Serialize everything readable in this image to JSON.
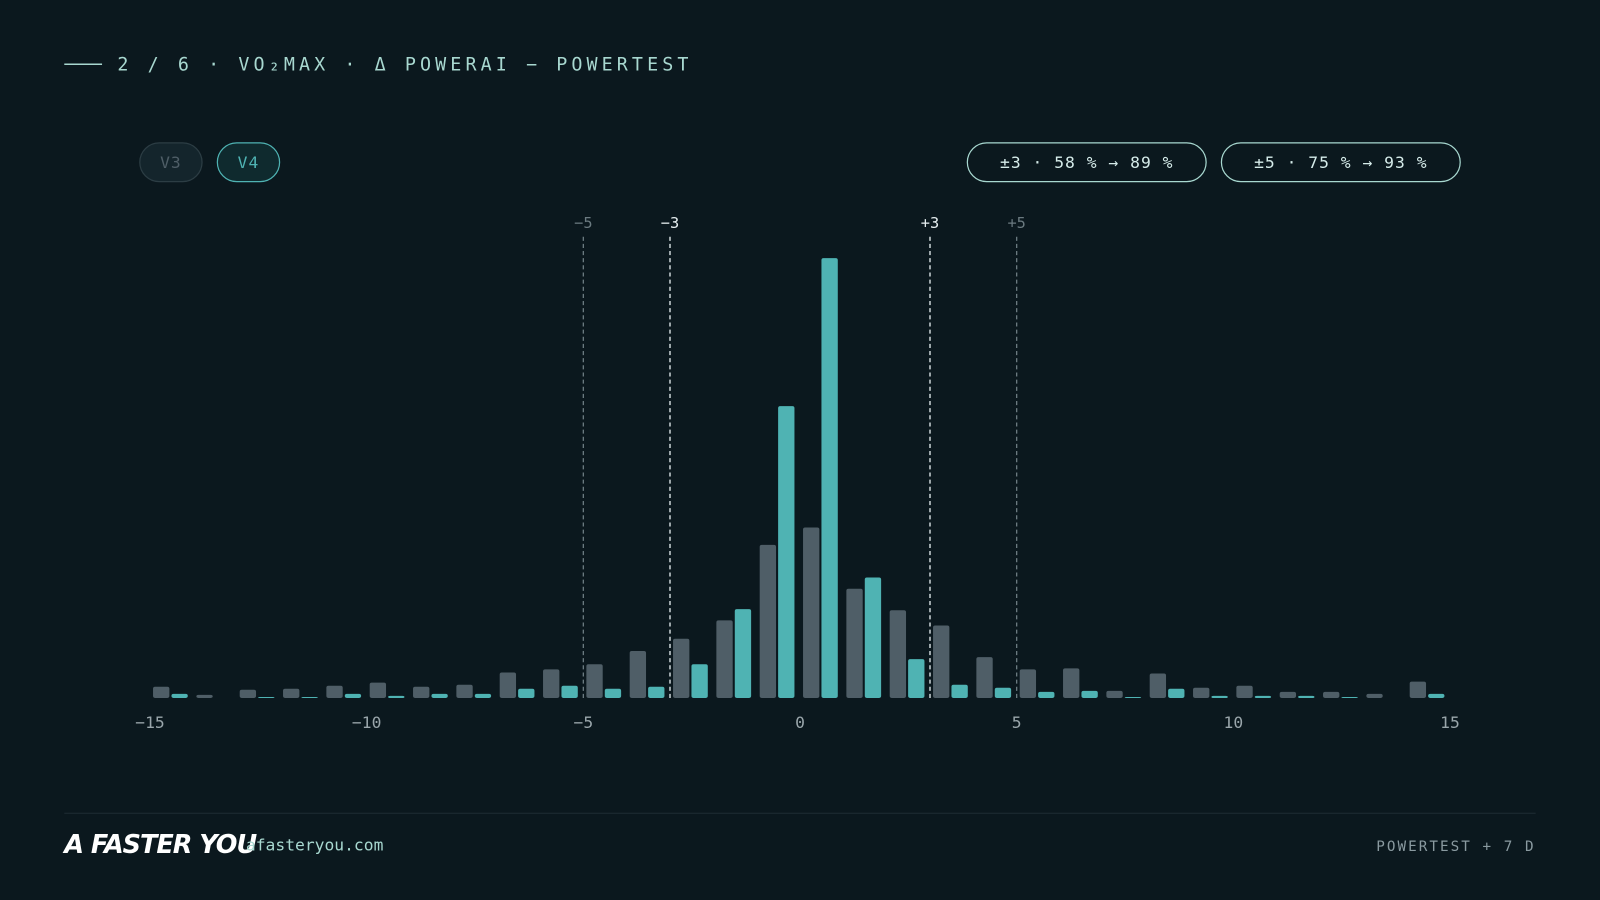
{
  "chart_data": {
    "type": "histogram",
    "title": "2 / 6 · VO₂MAX · Δ POWERAI − POWERTEST",
    "bins": [
      -15,
      -14,
      -13,
      -12,
      -11,
      -10,
      -9,
      -8,
      -7,
      -6,
      -5,
      -4,
      -3,
      -2,
      -1,
      0,
      1,
      2,
      3,
      4,
      5,
      6,
      7,
      8,
      9,
      10,
      11,
      12,
      13,
      14,
      15
    ],
    "series": [
      {
        "name": "V3",
        "color": "#4f5e67",
        "values": [
          11,
          3,
          8,
          9,
          12,
          15,
          11,
          13,
          25,
          28,
          33,
          46,
          58,
          76,
          150,
          167,
          107,
          86,
          71,
          40,
          28,
          29,
          7,
          24,
          10,
          12,
          6,
          6,
          4,
          16
        ]
      },
      {
        "name": "V4",
        "color": "#4fb3b3",
        "values": [
          4,
          0,
          1,
          1,
          4,
          2,
          4,
          4,
          9,
          12,
          9,
          11,
          33,
          87,
          286,
          431,
          118,
          38,
          13,
          10,
          6,
          7,
          1,
          9,
          2,
          2,
          2,
          1,
          0,
          4
        ]
      }
    ],
    "active_series": 1,
    "xlim": [
      -15,
      15
    ],
    "ylim": [
      0,
      431
    ],
    "xticks": [
      {
        "value": -15,
        "label": "−15"
      },
      {
        "value": -10,
        "label": "−10"
      },
      {
        "value": -5,
        "label": "−5"
      },
      0,
      5,
      10,
      15
    ],
    "reference_lines": [
      {
        "value": -5,
        "label": "−5",
        "color": "#6b7a80"
      },
      {
        "value": -3,
        "label": "−3",
        "color": "#e6eef0"
      },
      {
        "value": 3,
        "label": "+3",
        "color": "#e6eef0"
      },
      {
        "value": 5,
        "label": "+5",
        "color": "#6b7a80"
      }
    ],
    "badges": [
      "±3 · 58 % → 89 %",
      "±5 · 75 % → 93 %"
    ],
    "brand": "A FASTER YOU",
    "url": "afasteryou.com",
    "footnote": "POWERTEST + 7 D"
  }
}
